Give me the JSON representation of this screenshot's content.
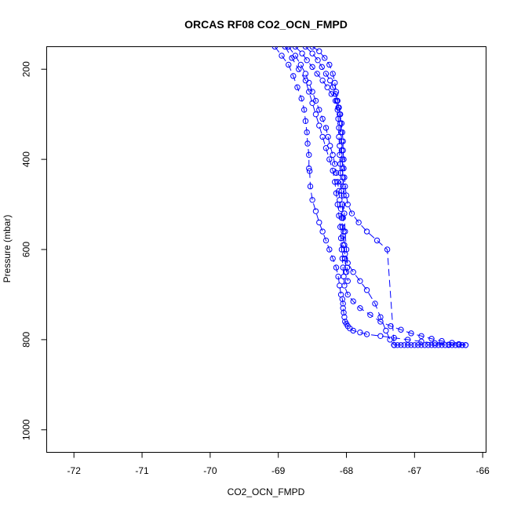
{
  "chart_data": {
    "type": "scatter",
    "title": "ORCAS RF08 CO2_OCN_FMPD",
    "xlabel": "CO2_OCN_FMPD",
    "ylabel": "Pressure (mbar)",
    "xlim": [
      -72.4,
      -65.95
    ],
    "ylim": [
      1050,
      150
    ],
    "y_reversed": true,
    "x_ticks": [
      -72,
      -71,
      -70,
      -69,
      -68,
      -67,
      -66
    ],
    "y_ticks": [
      200,
      400,
      600,
      800,
      1000
    ],
    "grid": false,
    "marker": "open-circle",
    "line_style": "dashed",
    "color": "#0000ff",
    "series": [
      {
        "x": [
          -69.05,
          -68.95,
          -68.85,
          -68.78,
          -68.72,
          -68.66,
          -68.62,
          -68.6,
          -68.58,
          -68.57,
          -68.55,
          -68.55,
          -68.54,
          -68.53,
          -68.5,
          -68.45,
          -68.4,
          -68.35,
          -68.3,
          -68.25,
          -68.2,
          -68.15,
          -68.12,
          -68.1,
          -68.08,
          -68.06,
          -68.05,
          -68.05,
          -68.04,
          -68.03,
          -68.02,
          -68.0,
          -67.98,
          -67.95,
          -67.9,
          -67.8,
          -67.7,
          -67.5,
          -67.3,
          -67.1,
          -66.9,
          -66.7,
          -66.5,
          -66.3
        ],
        "y": [
          150,
          170,
          190,
          215,
          240,
          265,
          290,
          315,
          340,
          365,
          390,
          420,
          426,
          460,
          490,
          515,
          540,
          560,
          580,
          600,
          620,
          640,
          660,
          680,
          700,
          710,
          720,
          730,
          740,
          750,
          760,
          765,
          770,
          775,
          780,
          784,
          788,
          792,
          796,
          800,
          804,
          808,
          811,
          812
        ]
      },
      {
        "x": [
          -68.9,
          -68.8,
          -68.7,
          -68.6,
          -68.55,
          -68.5,
          -68.45,
          -68.4,
          -68.35,
          -68.3,
          -68.25,
          -68.2,
          -68.17,
          -68.15,
          -68.13,
          -68.11,
          -68.09,
          -68.08,
          -68.07,
          -68.06,
          -68.05,
          -68.04,
          -68.03,
          -67.98,
          -67.9,
          -67.8,
          -67.65,
          -67.5,
          -67.35,
          -67.2,
          -67.05,
          -66.9,
          -66.75,
          -66.6,
          -66.45,
          -66.35,
          -66.25
        ],
        "y": [
          150,
          175,
          200,
          225,
          250,
          275,
          300,
          325,
          350,
          375,
          400,
          425,
          450,
          475,
          500,
          525,
          550,
          575,
          600,
          620,
          640,
          660,
          680,
          700,
          715,
          730,
          745,
          760,
          770,
          778,
          786,
          792,
          798,
          803,
          807,
          810,
          812
        ]
      },
      {
        "x": [
          -68.85,
          -68.75,
          -68.67,
          -68.6,
          -68.55,
          -68.5,
          -68.45,
          -68.4,
          -68.35,
          -68.3,
          -68.27,
          -68.24,
          -68.2,
          -68.17,
          -68.15,
          -68.13,
          -68.11,
          -68.1,
          -68.08,
          -68.07,
          -68.06,
          -68.05,
          -68.05,
          -68.02,
          -67.98,
          -67.9,
          -67.8,
          -67.7,
          -67.58,
          -67.5,
          -67.42,
          -67.36,
          -67.3
        ],
        "y": [
          150,
          170,
          190,
          210,
          230,
          250,
          270,
          290,
          310,
          330,
          350,
          370,
          390,
          410,
          430,
          450,
          470,
          490,
          510,
          530,
          550,
          570,
          590,
          610,
          630,
          650,
          670,
          690,
          720,
          750,
          780,
          800,
          812
        ]
      },
      {
        "x": [
          -68.75,
          -68.65,
          -68.58,
          -68.5,
          -68.43,
          -68.35,
          -68.28,
          -68.22,
          -68.16,
          -68.12,
          -68.09,
          -68.07,
          -68.06,
          -68.05,
          -68.05,
          -68.04,
          -68.04,
          -68.03,
          -68.02,
          -68.0,
          -67.98,
          -67.92,
          -67.82,
          -67.7,
          -67.55,
          -67.4,
          -67.3
        ],
        "y": [
          150,
          165,
          180,
          195,
          210,
          225,
          240,
          255,
          270,
          285,
          300,
          320,
          340,
          360,
          380,
          400,
          420,
          440,
          460,
          480,
          500,
          520,
          540,
          560,
          580,
          600,
          812
        ]
      },
      {
        "x": [
          -68.6,
          -68.5,
          -68.42,
          -68.36,
          -68.3,
          -68.24,
          -68.2,
          -68.16,
          -68.13,
          -68.11,
          -68.1,
          -68.09,
          -68.08,
          -68.07,
          -68.07,
          -68.06,
          -68.06,
          -68.05,
          -68.05,
          -68.04,
          -68.03,
          -68.02,
          -68.0,
          -67.99,
          -67.98
        ],
        "y": [
          150,
          165,
          180,
          195,
          210,
          225,
          240,
          255,
          270,
          285,
          300,
          320,
          340,
          360,
          380,
          400,
          420,
          440,
          460,
          480,
          520,
          560,
          600,
          640,
          670
        ]
      },
      {
        "x": [
          -68.5,
          -68.4,
          -68.32,
          -68.25,
          -68.2,
          -68.17,
          -68.15,
          -68.14,
          -68.13,
          -68.12,
          -68.11,
          -68.11,
          -68.1,
          -68.1,
          -68.09,
          -68.09,
          -68.08,
          -68.07,
          -68.06,
          -68.05,
          -68.04,
          -68.03,
          -68.02,
          -68.0
        ],
        "y": [
          150,
          160,
          175,
          190,
          210,
          230,
          250,
          270,
          290,
          310,
          330,
          350,
          370,
          390,
          410,
          430,
          450,
          470,
          500,
          530,
          560,
          590,
          620,
          650
        ]
      },
      {
        "x": [
          -67.3,
          -67.25,
          -67.2,
          -67.15,
          -67.1,
          -67.05,
          -67.0,
          -66.95,
          -66.9,
          -66.85,
          -66.8,
          -66.75,
          -66.7,
          -66.65,
          -66.6,
          -66.55,
          -66.5,
          -66.45,
          -66.4,
          -66.35,
          -66.3,
          -66.25
        ],
        "y": [
          812,
          812,
          812,
          812,
          812,
          812,
          812,
          812,
          812,
          812,
          812,
          812,
          812,
          812,
          812,
          812,
          812,
          812,
          812,
          812,
          812,
          812
        ]
      }
    ]
  }
}
